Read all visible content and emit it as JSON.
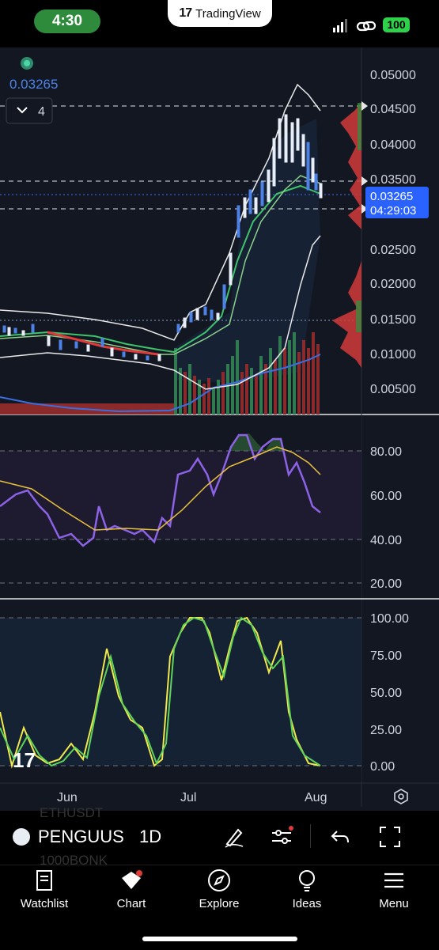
{
  "status_bar": {
    "time": "4:30",
    "app_name": "TradingView",
    "battery": "100"
  },
  "chart": {
    "last_price_header": "0.03265",
    "collapse_count": "4",
    "price_axis": [
      "0.05000",
      "0.04500",
      "0.04000",
      "0.03500",
      "0.03265",
      "0.02500",
      "0.02000",
      "0.01500",
      "0.01000",
      "0.00500"
    ],
    "price_tag": "0.03265",
    "countdown": "04:29:03",
    "rsi_axis": [
      "80.00",
      "60.00",
      "40.00",
      "20.00"
    ],
    "stoch_axis": [
      "100.00",
      "75.00",
      "50.00",
      "25.00",
      "0.00"
    ],
    "time_axis": [
      "Jun",
      "Jul",
      "Aug"
    ],
    "colors": {
      "up": "#4c82e6",
      "down": "#e8eef7",
      "bg": "#131722",
      "rsi": "#8c63e6",
      "ma": "#e8c23a"
    }
  },
  "toolbar": {
    "symbol": "PENGUUS",
    "interval": "1D",
    "ghost_above": "ETHUSDT",
    "ghost_below": "1000BONK"
  },
  "tabs": [
    {
      "label": "Watchlist",
      "icon": "book-icon"
    },
    {
      "label": "Chart",
      "icon": "chart-icon"
    },
    {
      "label": "Explore",
      "icon": "compass-icon"
    },
    {
      "label": "Ideas",
      "icon": "lightbulb-icon"
    },
    {
      "label": "Menu",
      "icon": "menu-icon"
    }
  ]
}
